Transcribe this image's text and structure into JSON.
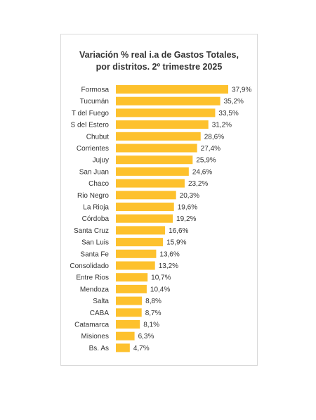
{
  "chart_data": {
    "type": "bar",
    "orientation": "horizontal",
    "title_line1": "Variación % real i.a de Gastos Totales,",
    "title_line2": "por distritos. 2º trimestre 2025",
    "categories": [
      "Formosa",
      "Tucumán",
      "T del Fuego",
      "S del Estero",
      "Chubut",
      "Corrientes",
      "Jujuy",
      "San Juan",
      "Chaco",
      "Rio Negro",
      "La Rioja",
      "Córdoba",
      "Santa Cruz",
      "San Luis",
      "Santa Fe",
      "Consolidado",
      "Entre Rios",
      "Mendoza",
      "Salta",
      "CABA",
      "Catamarca",
      "Misiones",
      "Bs. As"
    ],
    "values": [
      37.9,
      35.2,
      33.5,
      31.2,
      28.6,
      27.4,
      25.9,
      24.6,
      23.2,
      20.3,
      19.6,
      19.2,
      16.6,
      15.9,
      13.6,
      13.2,
      10.7,
      10.4,
      8.8,
      8.7,
      8.1,
      6.3,
      4.7
    ],
    "value_labels": [
      "37,9%",
      "35,2%",
      "33,5%",
      "31,2%",
      "28,6%",
      "27,4%",
      "25,9%",
      "24,6%",
      "23,2%",
      "20,3%",
      "19,6%",
      "19,2%",
      "16,6%",
      "15,9%",
      "13,6%",
      "13,2%",
      "10,7%",
      "10,4%",
      "8,8%",
      "8,7%",
      "8,1%",
      "6,3%",
      "4,7%"
    ],
    "bar_color": "#FDC12D",
    "grid": false,
    "legend": "none"
  }
}
